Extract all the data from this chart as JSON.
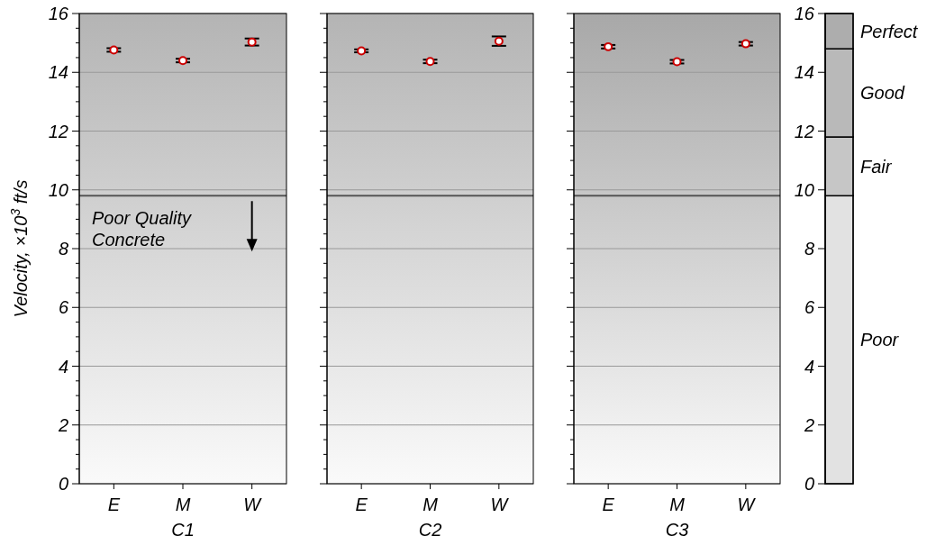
{
  "chart_data": [
    {
      "type": "scatter",
      "xlabel": "C1",
      "ylabel": "Velocity, ×10$^{3}$ ft/s",
      "categories": [
        "E",
        "M",
        "W"
      ],
      "ylim": [
        0,
        16
      ],
      "yticks": [
        0,
        {
          "value": 0.5,
          "label": null
        },
        {
          "value": 1,
          "label": null
        },
        {
          "value": 1.5,
          "label": null
        },
        2,
        {
          "value": 2.5,
          "label": null
        },
        {
          "value": 3,
          "label": null
        },
        {
          "value": 3.5,
          "label": null
        },
        4,
        {
          "value": 4.5,
          "label": null
        },
        {
          "value": 5,
          "label": null
        },
        {
          "value": 5.5,
          "label": null
        },
        6,
        {
          "value": 6.5,
          "label": null
        },
        {
          "value": 7,
          "label": null
        },
        {
          "value": 7.5,
          "label": null
        },
        8,
        {
          "value": 8.5,
          "label": null
        },
        {
          "value": 9,
          "label": null
        },
        {
          "value": 9.5,
          "label": null
        },
        10,
        {
          "value": 10.5,
          "label": null
        },
        {
          "value": 11,
          "label": null
        },
        {
          "value": 11.5,
          "label": null
        },
        12,
        {
          "value": 12.5,
          "label": null
        },
        {
          "value": 13,
          "label": null
        },
        {
          "value": 13.5,
          "label": null
        },
        14,
        {
          "value": 14.5,
          "label": null
        },
        {
          "value": 15,
          "label": null
        },
        {
          "value": 15.5,
          "label": null
        },
        16
      ],
      "grid": "y",
      "marker": "circle",
      "series": [
        {
          "color": "#cc0000",
          "values": [
            14.76,
            14.4,
            15.03
          ],
          "errors": [
            0.06,
            0.06,
            0.12
          ]
        }
      ],
      "ref_lines": [
        {
          "axis": "y",
          "value": 9.8,
          "color": "#555555"
        }
      ],
      "annotations": [
        "Poor Quality Concrete"
      ]
    },
    {
      "type": "scatter",
      "xlabel": "C2",
      "categories": [
        "E",
        "M",
        "W"
      ],
      "ylim": [
        0,
        16
      ],
      "yticks": [
        0,
        {
          "value": 0.5,
          "label": null
        },
        {
          "value": 1,
          "label": null
        },
        {
          "value": 1.5,
          "label": null
        },
        2,
        {
          "value": 2.5,
          "label": null
        },
        {
          "value": 3,
          "label": null
        },
        {
          "value": 3.5,
          "label": null
        },
        4,
        {
          "value": 4.5,
          "label": null
        },
        {
          "value": 5,
          "label": null
        },
        {
          "value": 5.5,
          "label": null
        },
        6,
        {
          "value": 6.5,
          "label": null
        },
        {
          "value": 7,
          "label": null
        },
        {
          "value": 7.5,
          "label": null
        },
        8,
        {
          "value": 8.5,
          "label": null
        },
        {
          "value": 9,
          "label": null
        },
        {
          "value": 9.5,
          "label": null
        },
        10,
        {
          "value": 10.5,
          "label": null
        },
        {
          "value": 11,
          "label": null
        },
        {
          "value": 11.5,
          "label": null
        },
        12,
        {
          "value": 12.5,
          "label": null
        },
        {
          "value": 13,
          "label": null
        },
        {
          "value": 13.5,
          "label": null
        },
        14,
        {
          "value": 14.5,
          "label": null
        },
        {
          "value": 15,
          "label": null
        },
        {
          "value": 15.5,
          "label": null
        },
        16
      ],
      "grid": "y",
      "marker": "circle",
      "tick_labels": "x",
      "series": [
        {
          "color": "#cc0000",
          "values": [
            14.73,
            14.37,
            15.06
          ],
          "errors": [
            0.05,
            0.06,
            0.16
          ]
        }
      ],
      "ref_lines": [
        {
          "axis": "y",
          "value": 9.8,
          "color": "#555555"
        }
      ]
    },
    {
      "type": "scatter",
      "xlabel": "C3",
      "categories": [
        "E",
        "M",
        "W"
      ],
      "ylim": [
        0,
        16
      ],
      "yticks": [
        0,
        {
          "value": 0.5,
          "label": null
        },
        {
          "value": 1,
          "label": null
        },
        {
          "value": 1.5,
          "label": null
        },
        2,
        {
          "value": 2.5,
          "label": null
        },
        {
          "value": 3,
          "label": null
        },
        {
          "value": 3.5,
          "label": null
        },
        4,
        {
          "value": 4.5,
          "label": null
        },
        {
          "value": 5,
          "label": null
        },
        {
          "value": 5.5,
          "label": null
        },
        6,
        {
          "value": 6.5,
          "label": null
        },
        {
          "value": 7,
          "label": null
        },
        {
          "value": 7.5,
          "label": null
        },
        8,
        {
          "value": 8.5,
          "label": null
        },
        {
          "value": 9,
          "label": null
        },
        {
          "value": 9.5,
          "label": null
        },
        10,
        {
          "value": 10.5,
          "label": null
        },
        {
          "value": 11,
          "label": null
        },
        {
          "value": 11.5,
          "label": null
        },
        12,
        {
          "value": 12.5,
          "label": null
        },
        {
          "value": 13,
          "label": null
        },
        {
          "value": 13.5,
          "label": null
        },
        14,
        {
          "value": 14.5,
          "label": null
        },
        {
          "value": 15,
          "label": null
        },
        {
          "value": 15.5,
          "label": null
        },
        16
      ],
      "grid": "y",
      "marker": "circle",
      "tick_labels": "x",
      "series": [
        {
          "color": "#cc0000",
          "values": [
            14.87,
            14.36,
            14.97
          ],
          "errors": [
            0.06,
            0.06,
            0.06
          ]
        }
      ],
      "ref_lines": [
        {
          "axis": "y",
          "value": 9.8,
          "color": "#555555"
        }
      ]
    },
    {
      "type": "bar",
      "stacked": true,
      "categories": [
        null
      ],
      "ylim": [
        0,
        16
      ],
      "yticks": [
        0,
        2,
        4,
        6,
        8,
        10,
        12,
        14,
        16
      ],
      "series": [
        {
          "name": "Poor",
          "color": "#e2e2e2",
          "values": [
            9.8
          ]
        },
        {
          "name": "Fair",
          "color": "#c6c6c6",
          "values": [
            2.0
          ]
        },
        {
          "name": "Good",
          "color": "#b9b9b9",
          "values": [
            3.0
          ]
        },
        {
          "name": "Perfect",
          "color": "#adadad",
          "values": [
            1.2
          ]
        }
      ]
    }
  ]
}
